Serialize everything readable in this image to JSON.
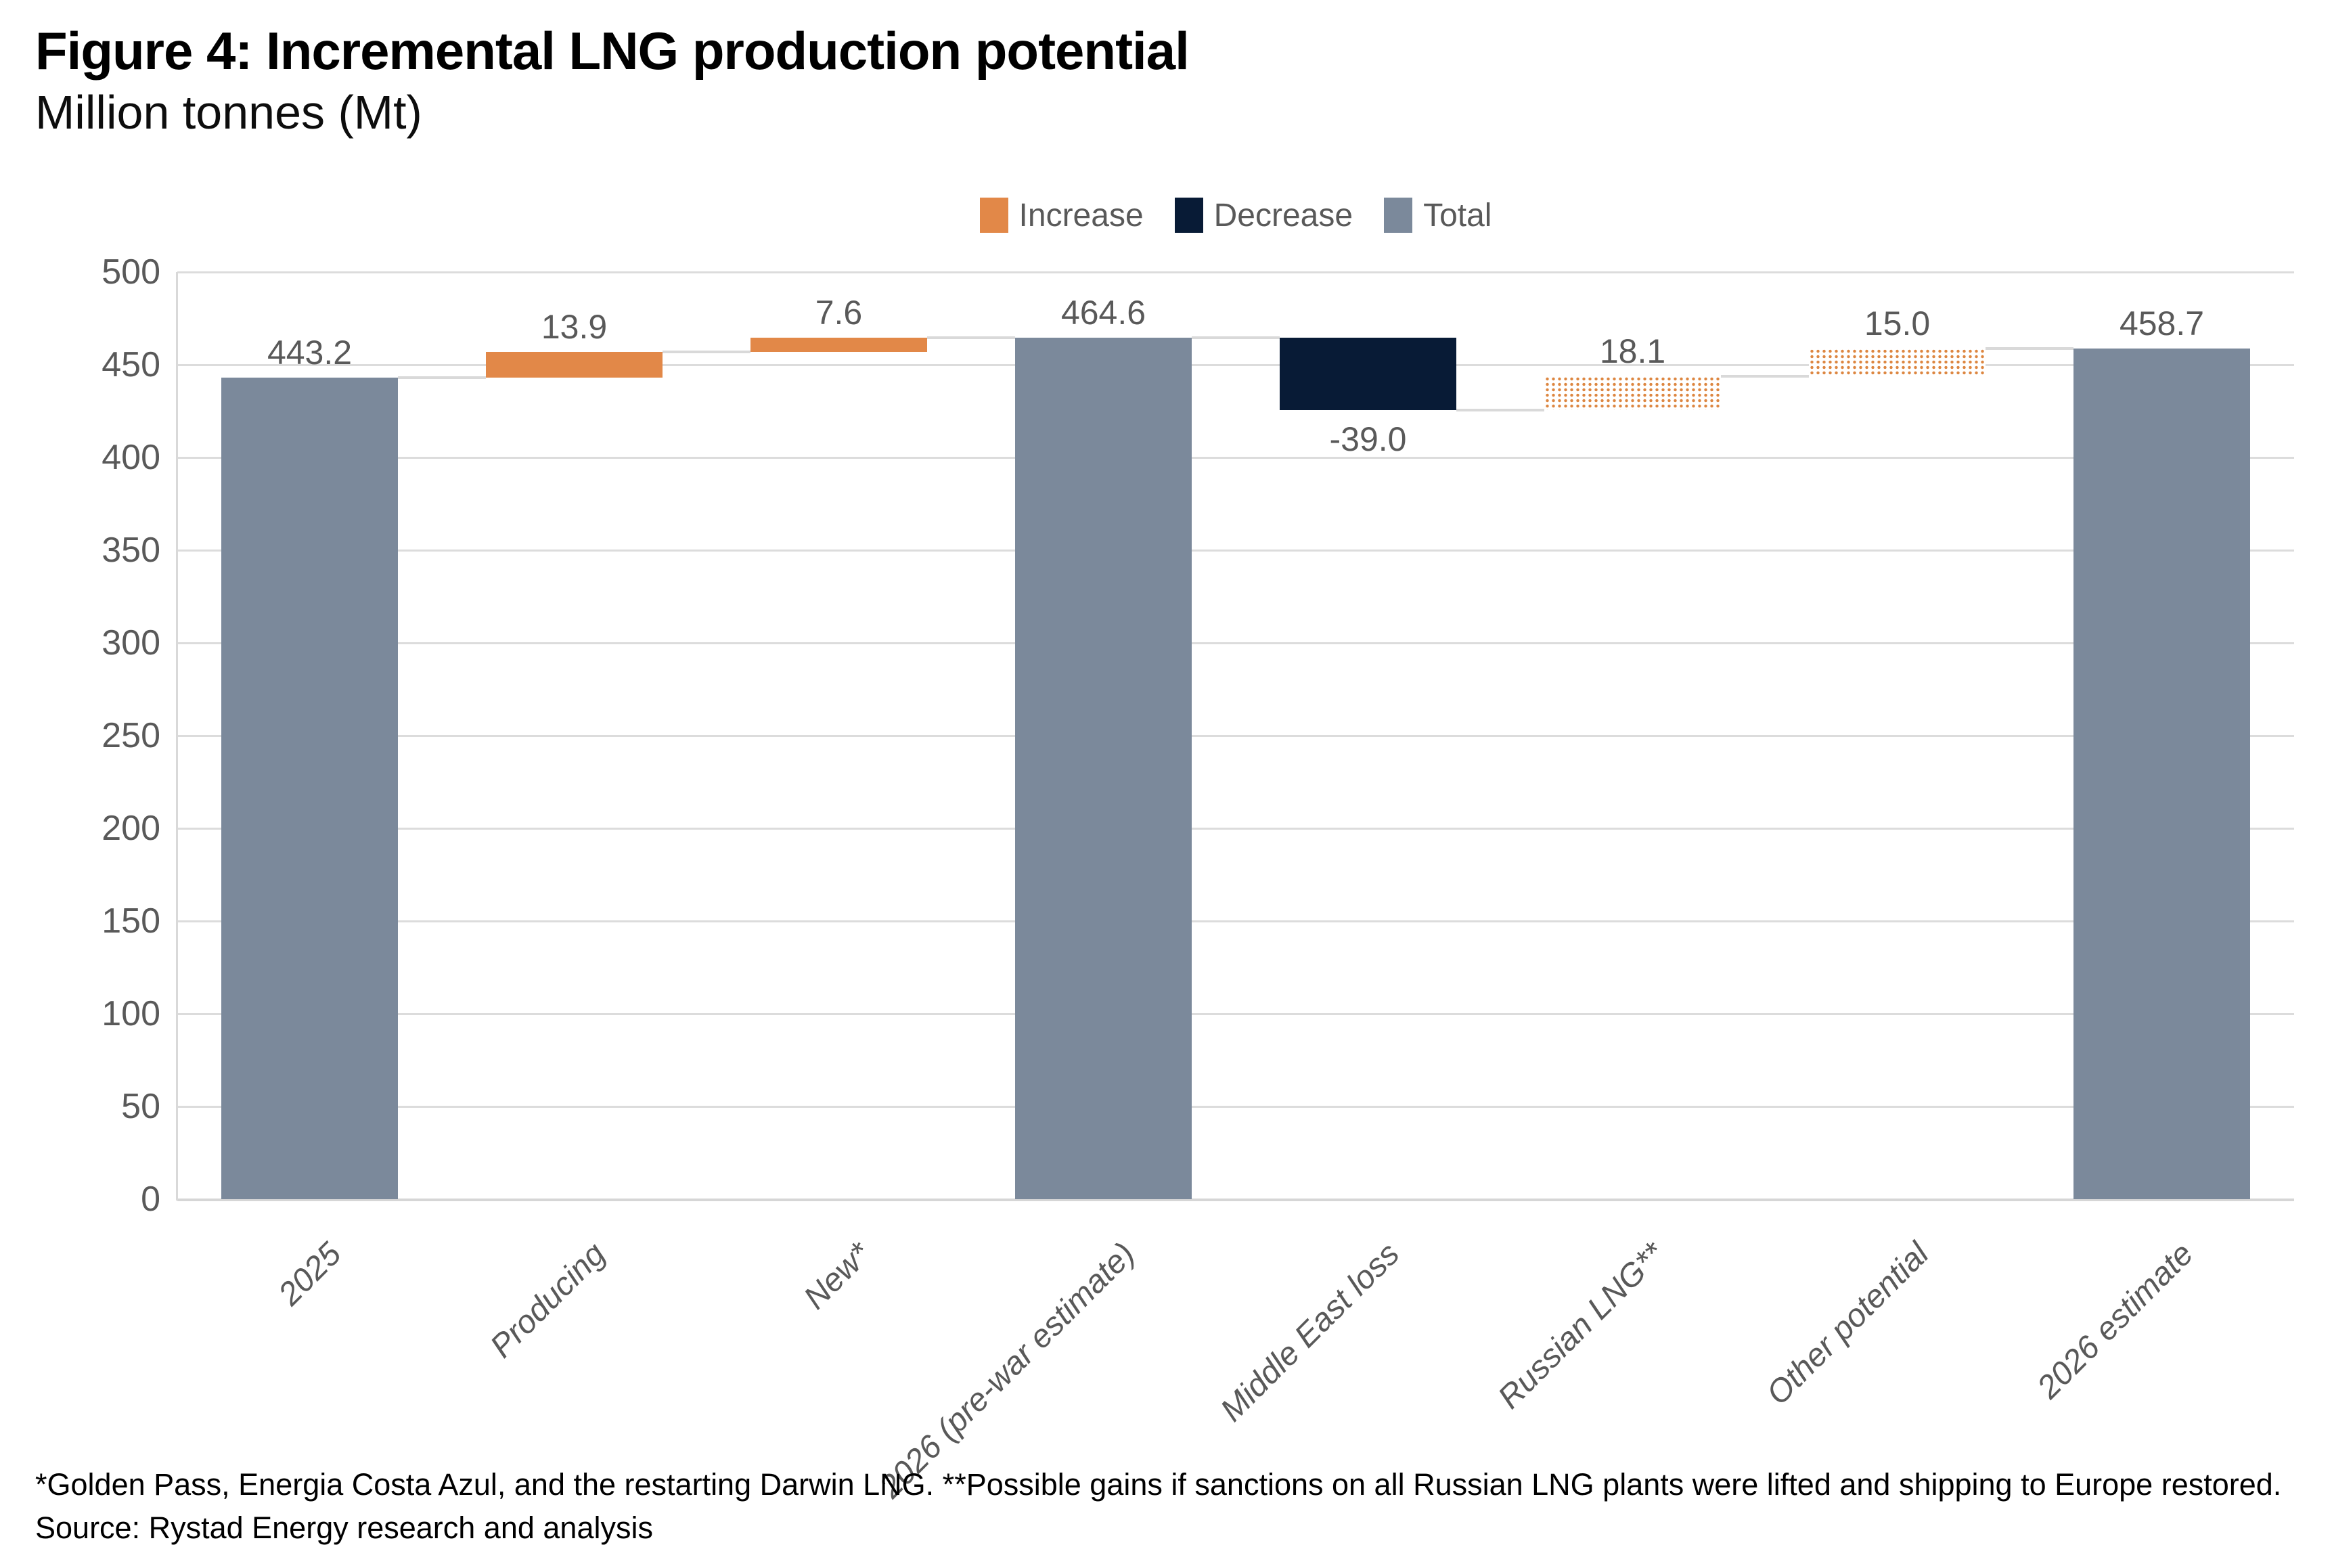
{
  "chart_data": {
    "type": "bar",
    "subtype": "waterfall",
    "title": "Figure 4: Incremental LNG production potential",
    "subtitle": "Million tonnes (Mt)",
    "ylabel": "",
    "xlabel": "",
    "ylim": [
      0,
      500
    ],
    "ytick_step": 50,
    "grid": true,
    "legend_position": "top-center",
    "legend": [
      {
        "label": "Increase",
        "color": "#e28848",
        "style": "solid"
      },
      {
        "label": "Decrease",
        "color": "#081b36",
        "style": "solid"
      },
      {
        "label": "Total",
        "color": "#7b899b",
        "style": "solid"
      }
    ],
    "categories": [
      "2025",
      "Producing",
      "New*",
      "2026 (pre-war estimate)",
      "Middle East loss",
      "Russian LNG**",
      "Other potential",
      "2026 estimate"
    ],
    "bars": [
      {
        "category": "2025",
        "value": 443.2,
        "label": "443.2",
        "kind": "total"
      },
      {
        "category": "Producing",
        "value": 13.9,
        "label": "13.9",
        "kind": "increase"
      },
      {
        "category": "New*",
        "value": 7.6,
        "label": "7.6",
        "kind": "increase"
      },
      {
        "category": "2026 (pre-war estimate)",
        "value": 464.6,
        "label": "464.6",
        "kind": "total"
      },
      {
        "category": "Middle East loss",
        "value": -39.0,
        "label": "-39.0",
        "kind": "decrease"
      },
      {
        "category": "Russian LNG**",
        "value": 18.1,
        "label": "18.1",
        "kind": "increase-dotted"
      },
      {
        "category": "Other potential",
        "value": 15.0,
        "label": "15.0",
        "kind": "increase-dotted"
      },
      {
        "category": "2026 estimate",
        "value": 458.7,
        "label": "458.7",
        "kind": "total"
      }
    ],
    "colors": {
      "increase": "#e28848",
      "decrease": "#081b36",
      "total": "#7b899b",
      "gridline": "#dcdcdc",
      "label_text": "#595959"
    },
    "footnote": "*Golden Pass, Energia Costa Azul, and the restarting Darwin LNG. **Possible gains if sanctions on all Russian LNG plants were lifted and shipping to Europe restored.",
    "source": "Source: Rystad Energy research and analysis"
  }
}
